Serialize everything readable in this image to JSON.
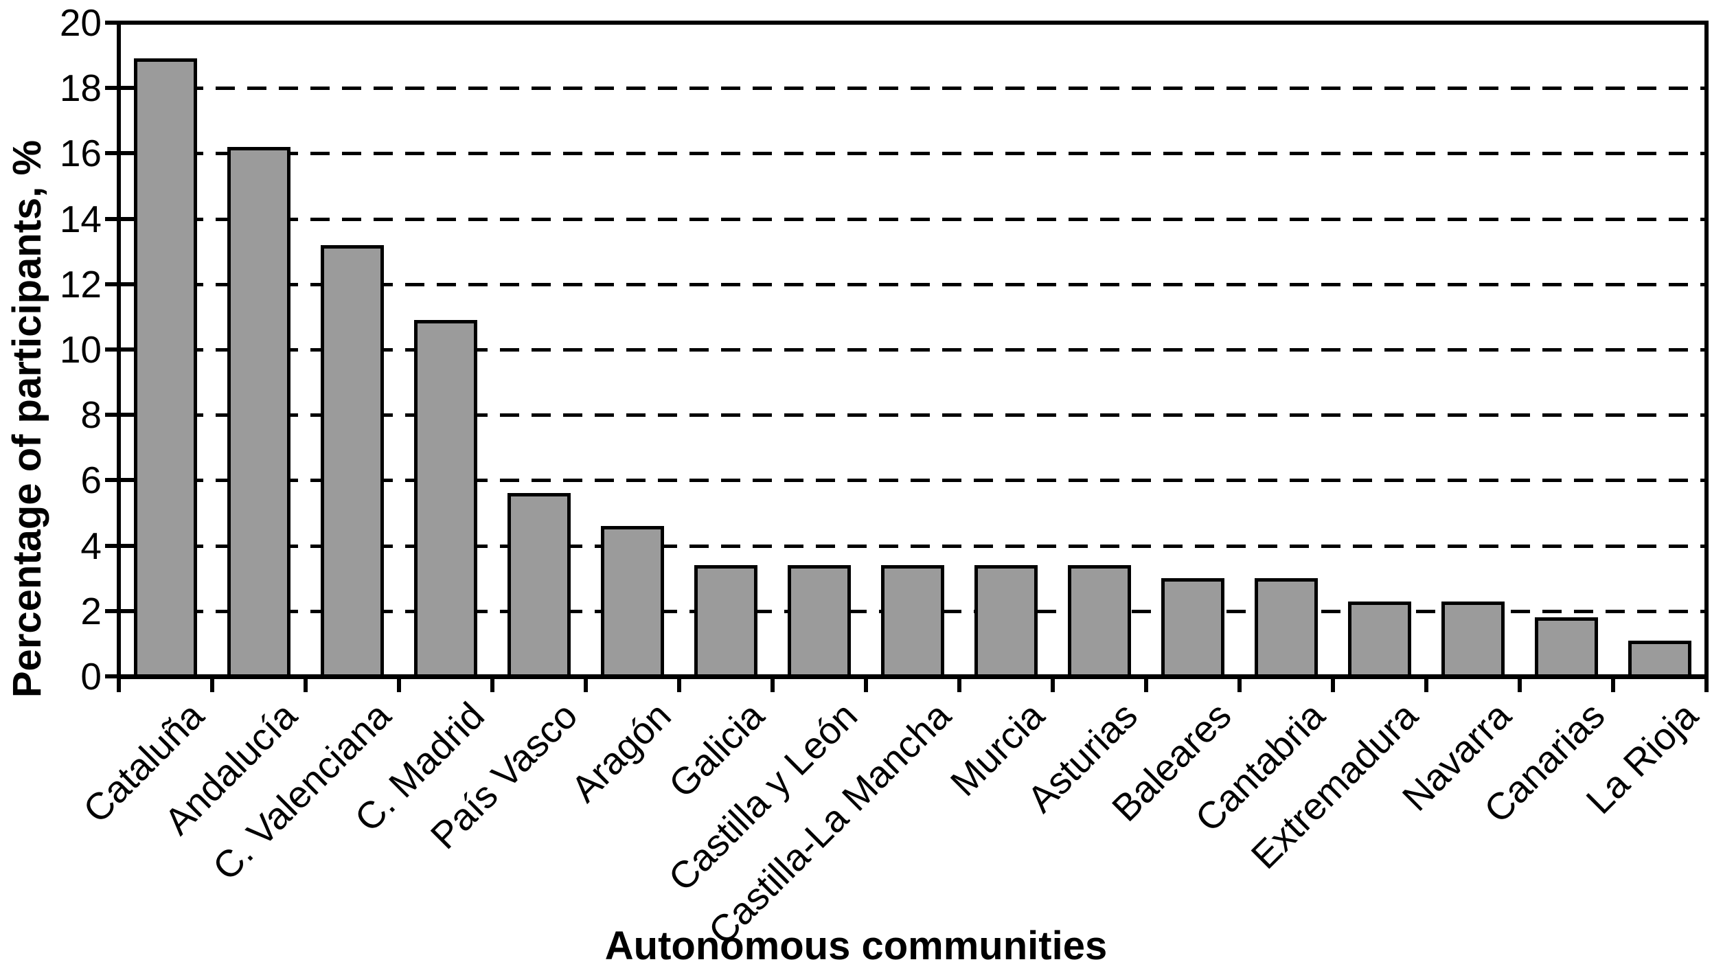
{
  "chart_data": {
    "type": "bar",
    "xlabel": "Autonomous communities",
    "ylabel": "Percentage of participants, %",
    "categories": [
      "Cataluña",
      "Andalucía",
      "C. Valenciana",
      "C. Madrid",
      "País Vasco",
      "Aragón",
      "Galicia",
      "Castilla y León",
      "Castilla-La Mancha",
      "Murcia",
      "Asturias",
      "Baleares",
      "Cantabria",
      "Extremadura",
      "Navarra",
      "Canarias",
      "La Rioja"
    ],
    "values": [
      18.9,
      16.2,
      13.2,
      10.9,
      5.6,
      4.6,
      3.4,
      3.4,
      3.4,
      3.4,
      3.4,
      3.0,
      3.0,
      2.3,
      2.3,
      1.8,
      1.1
    ],
    "ylim": [
      0,
      20
    ],
    "ytick_step": 2,
    "ytick_labels": [
      "0",
      "2",
      "4",
      "6",
      "8",
      "10",
      "12",
      "14",
      "16",
      "18",
      "20"
    ],
    "grid": {
      "horizontal": true,
      "style": "dashed",
      "every": 2,
      "legend_shown": false
    },
    "colors": {
      "bar_fill": "#9b9b9b",
      "bar_outline": "#000000",
      "axis": "#000000",
      "background": "#ffffff"
    }
  }
}
